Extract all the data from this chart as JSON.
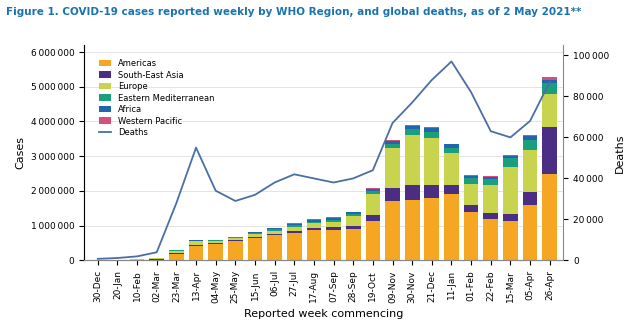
{
  "title": "Figure 1. COVID-19 cases reported weekly by WHO Region, and global deaths, as of 2 May 2021**",
  "xlabel": "Reported week commencing",
  "ylabel_left": "Cases",
  "ylabel_right": "Deaths",
  "title_color": "#1A73B0",
  "weeks": [
    "30-Dec",
    "20-Jan",
    "10-Feb",
    "02-Mar",
    "23-Mar",
    "13-Apr",
    "04-May",
    "25-May",
    "15-Jun",
    "06-Jul",
    "27-Jul",
    "17-Aug",
    "07-Sep",
    "28-Sep",
    "19-Oct",
    "09-Nov",
    "30-Nov",
    "21-Dec",
    "11-Jan",
    "01-Feb",
    "22-Feb",
    "15-Mar",
    "05-Apr",
    "26-Apr"
  ],
  "americas": [
    5000,
    8000,
    15000,
    25000,
    200000,
    420000,
    480000,
    550000,
    640000,
    720000,
    800000,
    870000,
    870000,
    900000,
    1150000,
    1700000,
    1750000,
    1800000,
    1900000,
    1400000,
    1200000,
    1150000,
    1600000,
    2500000
  ],
  "south_east_asia": [
    1000,
    2000,
    3000,
    5000,
    7000,
    15000,
    20000,
    25000,
    35000,
    45000,
    55000,
    65000,
    80000,
    100000,
    150000,
    380000,
    420000,
    380000,
    280000,
    200000,
    160000,
    180000,
    380000,
    1350000
  ],
  "europe": [
    2000,
    5000,
    15000,
    35000,
    80000,
    120000,
    60000,
    65000,
    80000,
    90000,
    110000,
    130000,
    165000,
    270000,
    600000,
    1150000,
    1450000,
    1350000,
    900000,
    600000,
    800000,
    1350000,
    1200000,
    950000
  ],
  "eastern_mediterranean": [
    500,
    1000,
    2000,
    4000,
    12000,
    18000,
    18000,
    25000,
    35000,
    45000,
    50000,
    55000,
    60000,
    70000,
    90000,
    130000,
    150000,
    160000,
    150000,
    160000,
    180000,
    270000,
    300000,
    310000
  ],
  "africa": [
    200,
    500,
    1000,
    2000,
    3000,
    5000,
    8000,
    15000,
    25000,
    35000,
    45000,
    50000,
    50000,
    50000,
    65000,
    90000,
    110000,
    130000,
    110000,
    70000,
    55000,
    70000,
    90000,
    95000
  ],
  "western_pacific": [
    500,
    1000,
    2000,
    3000,
    4000,
    4000,
    4000,
    5000,
    6000,
    7000,
    8000,
    10000,
    12000,
    13000,
    17000,
    22000,
    25000,
    28000,
    24000,
    22000,
    22000,
    26000,
    45000,
    75000
  ],
  "deaths": [
    800,
    1200,
    2000,
    4000,
    28000,
    55000,
    34000,
    29000,
    32000,
    38000,
    42000,
    40000,
    38000,
    40000,
    44000,
    67000,
    77000,
    88000,
    97000,
    82000,
    63000,
    60000,
    68000,
    87000
  ],
  "colors": {
    "americas": "#F5A623",
    "south_east_asia": "#4B2E83",
    "europe": "#C8D44E",
    "eastern_mediterranean": "#1A9E7E",
    "africa": "#2166AC",
    "western_pacific": "#D4507A",
    "deaths": "#4A6FA5"
  },
  "ylim_cases": 6200000,
  "ylim_deaths": 105000,
  "title_fontsize": 7.5,
  "axis_fontsize": 8,
  "tick_fontsize": 6.5
}
